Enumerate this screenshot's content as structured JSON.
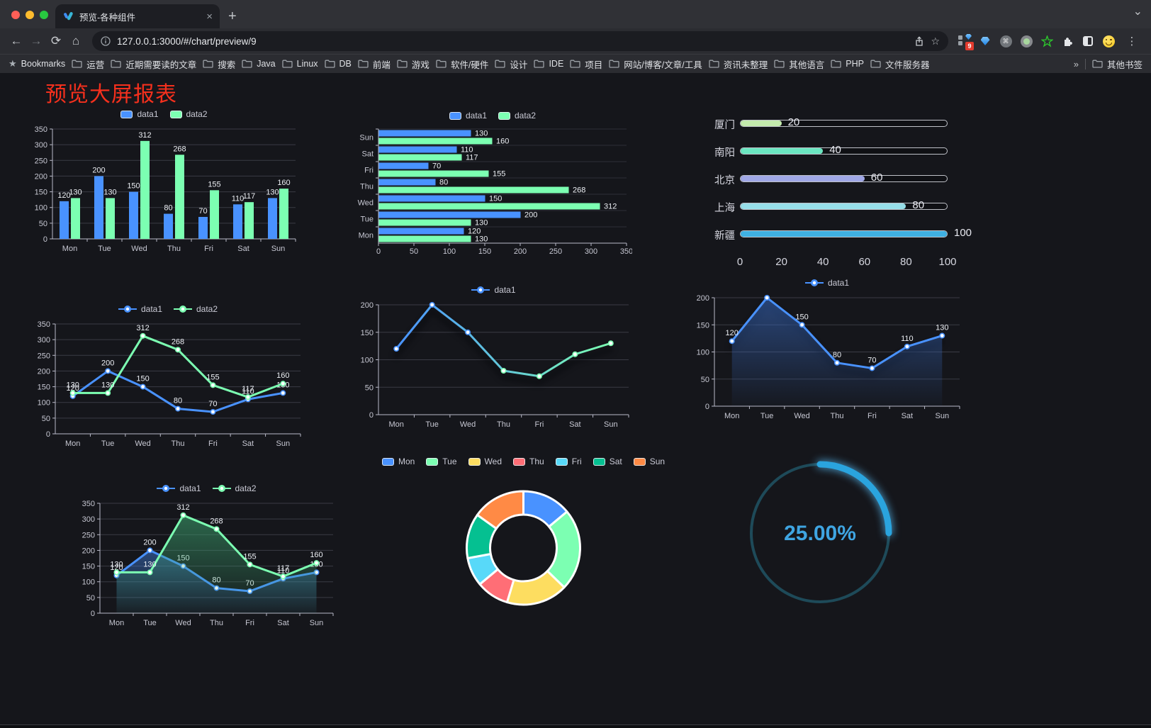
{
  "browser": {
    "tab_title": "预览-各种组件",
    "url": "127.0.0.1:3000/#/chart/preview/9",
    "new_tab_glyph": "+",
    "close_glyph": "×",
    "extension_badge": "9",
    "bookmarks_label": "Bookmarks",
    "bookmarks": [
      "运营",
      "近期需要读的文章",
      "搜索",
      "Java",
      "Linux",
      "DB",
      "前端",
      "游戏",
      "软件/硬件",
      "设计",
      "IDE",
      "项目",
      "网站/博客/文章/工具",
      "资讯未整理",
      "其他语言",
      "PHP",
      "文件服务器"
    ],
    "bookmarks_overflow_glyph": "»",
    "other_bookmarks": "其他书签"
  },
  "page": {
    "title": "预览大屏报表",
    "title_color": "#f5301d",
    "background": "#15161b"
  },
  "chart_data": [
    {
      "id": "grouped-bar",
      "type": "bar",
      "categories": [
        "Mon",
        "Tue",
        "Wed",
        "Thu",
        "Fri",
        "Sat",
        "Sun"
      ],
      "series": [
        {
          "name": "data1",
          "color": "#4992ff",
          "values": [
            120,
            200,
            150,
            80,
            70,
            110,
            130
          ]
        },
        {
          "name": "data2",
          "color": "#7cffb2",
          "values": [
            130,
            130,
            312,
            268,
            155,
            117,
            160
          ]
        }
      ],
      "ylim": [
        0,
        350
      ],
      "ystep": 50,
      "value_labels": true,
      "legend_position": "top",
      "grid": true
    },
    {
      "id": "horizontal-bar",
      "type": "hbar",
      "categories_top_to_bottom": [
        "Sun",
        "Sat",
        "Fri",
        "Thu",
        "Wed",
        "Tue",
        "Mon"
      ],
      "series": [
        {
          "name": "data1",
          "color": "#4992ff",
          "values_top_to_bottom": [
            130,
            110,
            70,
            80,
            150,
            200,
            120
          ]
        },
        {
          "name": "data2",
          "color": "#7cffb2",
          "values_top_to_bottom": [
            160,
            117,
            155,
            268,
            312,
            130,
            130
          ]
        }
      ],
      "xlim": [
        0,
        350
      ],
      "xstep": 50,
      "value_labels": true,
      "legend_position": "top",
      "grid": true
    },
    {
      "id": "city-progress",
      "type": "progress",
      "items": [
        {
          "label": "厦门",
          "value": 20,
          "color": "#c4ebad"
        },
        {
          "label": "南阳",
          "value": 40,
          "color": "#6be6c1"
        },
        {
          "label": "北京",
          "value": 60,
          "color": "#a0a7e6"
        },
        {
          "label": "上海",
          "value": 80,
          "color": "#96dee8"
        },
        {
          "label": "新疆",
          "value": 100,
          "color": "#3fb1e3"
        }
      ],
      "xlim": [
        0,
        100
      ],
      "xticks": [
        0,
        20,
        40,
        60,
        80,
        100
      ]
    },
    {
      "id": "multi-line",
      "type": "line",
      "categories": [
        "Mon",
        "Tue",
        "Wed",
        "Thu",
        "Fri",
        "Sat",
        "Sun"
      ],
      "series": [
        {
          "name": "data1",
          "color": "#4992ff",
          "values": [
            120,
            200,
            150,
            80,
            70,
            110,
            130
          ]
        },
        {
          "name": "data2",
          "color": "#7cffb2",
          "values": [
            130,
            130,
            312,
            268,
            155,
            117,
            160
          ]
        }
      ],
      "ylim": [
        0,
        350
      ],
      "ystep": 50,
      "value_labels": true,
      "legend_position": "top",
      "grid": true
    },
    {
      "id": "gradient-line",
      "type": "line",
      "categories": [
        "Mon",
        "Tue",
        "Wed",
        "Thu",
        "Fri",
        "Sat",
        "Sun"
      ],
      "series": [
        {
          "name": "data1",
          "color_gradient": [
            "#4992ff",
            "#7cffb2"
          ],
          "values": [
            120,
            200,
            150,
            80,
            70,
            110,
            130
          ],
          "shadow": true
        }
      ],
      "ylim": [
        0,
        200
      ],
      "ystep": 50,
      "value_labels": false,
      "legend_position": "top",
      "grid": true
    },
    {
      "id": "area-line",
      "type": "line",
      "categories": [
        "Mon",
        "Tue",
        "Wed",
        "Thu",
        "Fri",
        "Sat",
        "Sun"
      ],
      "series": [
        {
          "name": "data1",
          "color": "#4992ff",
          "values": [
            120,
            200,
            150,
            80,
            70,
            110,
            130
          ],
          "area": true,
          "area_colors": [
            "rgba(58,110,200,0.55)",
            "rgba(58,110,200,0.03)"
          ],
          "shadow": true
        }
      ],
      "ylim": [
        0,
        200
      ],
      "ystep": 50,
      "value_labels": true,
      "legend_position": "top",
      "grid": true
    },
    {
      "id": "multi-area-line",
      "type": "line",
      "categories": [
        "Mon",
        "Tue",
        "Wed",
        "Thu",
        "Fri",
        "Sat",
        "Sun"
      ],
      "series": [
        {
          "name": "data1",
          "color": "#4992ff",
          "values": [
            120,
            200,
            150,
            80,
            70,
            110,
            130
          ],
          "area": true,
          "area_colors": [
            "rgba(73,146,255,0.42)",
            "rgba(73,146,255,0.03)"
          ]
        },
        {
          "name": "data2",
          "color": "#7cffb2",
          "values": [
            130,
            130,
            312,
            268,
            155,
            117,
            160
          ],
          "area": true,
          "area_colors": [
            "rgba(62,170,115,0.55)",
            "rgba(62,170,115,0.04)"
          ]
        }
      ],
      "ylim": [
        0,
        350
      ],
      "ystep": 50,
      "value_labels": true,
      "legend_position": "top",
      "grid": true
    },
    {
      "id": "donut",
      "type": "pie",
      "inner_radius": 47,
      "outer_radius": 80,
      "border_color": "#ffffff",
      "items": [
        {
          "label": "Mon",
          "value": 120,
          "color": "#4992ff"
        },
        {
          "label": "Tue",
          "value": 200,
          "color": "#7cffb2"
        },
        {
          "label": "Wed",
          "value": 150,
          "color": "#fddd60"
        },
        {
          "label": "Thu",
          "value": 80,
          "color": "#ff6e76"
        },
        {
          "label": "Fri",
          "value": 70,
          "color": "#58d9f9"
        },
        {
          "label": "Sat",
          "value": 110,
          "color": "#05c091"
        },
        {
          "label": "Sun",
          "value": 130,
          "color": "#ff8a45"
        }
      ],
      "legend_position": "top"
    },
    {
      "id": "gauge",
      "type": "gauge",
      "percent": 25,
      "label": "25.00%",
      "color": "#2aa4de",
      "track_color": "#1e4a59",
      "text_color": "#3fa5e2"
    }
  ]
}
